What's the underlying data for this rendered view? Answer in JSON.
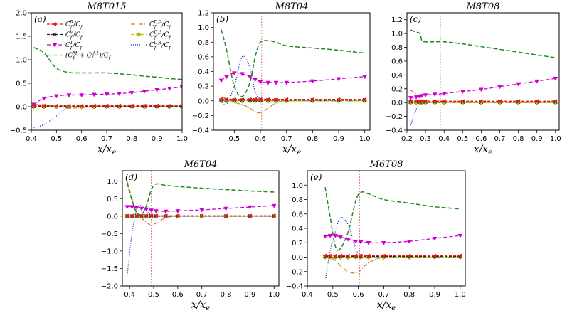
{
  "chart_data": {
    "type": "line",
    "legend": {
      "placement": "inside panel (a)",
      "entries": [
        {
          "key": "CfR",
          "label": "C_f^R / C_f",
          "color": "#e41a1c",
          "dash": "4,2",
          "marker": "arrow-left"
        },
        {
          "key": "CfV",
          "label": "C_f^V / C_f",
          "color": "#222222",
          "dash": "4,2",
          "marker": "x"
        },
        {
          "key": "CfT",
          "label": "C_f^T / C_f",
          "color": "#cc00cc",
          "dash": "5,3",
          "marker": "tri-down"
        },
        {
          "key": "CfM",
          "label": "(C_f^M + C_f^{D,1}) / C_f",
          "color": "#1a8a1a",
          "dash": "6,3",
          "marker": "none"
        },
        {
          "key": "CfD2",
          "label": "C_f^{D,2} / C_f",
          "color": "#d2832a",
          "dash": "6,2,1,2",
          "marker": "none"
        },
        {
          "key": "CfD3",
          "label": "C_f^{D,3} / C_f",
          "color": "#c8c800",
          "dash": "5,2",
          "marker": "diamond"
        },
        {
          "key": "CfD4",
          "label": "C_f^{D,4} / C_f",
          "color": "#2222cc",
          "dash": "1,2",
          "marker": "none"
        }
      ]
    },
    "panels": [
      {
        "label": "(a)",
        "title": "M8T015",
        "xlabel": "x/x_e",
        "xlim": [
          0.4,
          1.0
        ],
        "ylim": [
          -0.5,
          2.0
        ],
        "xticks": [
          "0.4",
          "0.5",
          "0.6",
          "0.7",
          "0.8",
          "0.9",
          "1.0"
        ],
        "yticks": [
          "−0.5",
          "0.0",
          "0.5",
          "1.0",
          "1.5",
          "2.0"
        ],
        "vline": 0.605,
        "x": [
          0.41,
          0.45,
          0.5,
          0.55,
          0.6,
          0.65,
          0.7,
          0.75,
          0.8,
          0.85,
          0.9,
          0.95,
          1.0
        ],
        "series": {
          "CfM": [
            1.26,
            1.15,
            0.82,
            0.73,
            0.72,
            0.72,
            0.72,
            0.7,
            0.68,
            0.65,
            0.63,
            0.6,
            0.58
          ],
          "CfT": [
            0.05,
            0.18,
            0.23,
            0.25,
            0.25,
            0.26,
            0.27,
            0.28,
            0.3,
            0.33,
            0.36,
            0.39,
            0.42
          ],
          "CfD4": [
            -0.45,
            -0.38,
            -0.2,
            0.0,
            0.03,
            0.01,
            0.0,
            0.0,
            0.0,
            0.0,
            0.0,
            0.0,
            0.0
          ],
          "CfR": [
            0.02,
            0.02,
            0.02,
            0.02,
            0.02,
            0.02,
            0.02,
            0.02,
            0.02,
            0.02,
            0.02,
            0.02,
            0.02
          ],
          "CfV": [
            0.01,
            0.01,
            0.01,
            0.01,
            0.01,
            0.01,
            0.01,
            0.01,
            0.01,
            0.01,
            0.01,
            0.01,
            0.01
          ],
          "CfD2": [
            0.05,
            0.04,
            0.0,
            -0.03,
            -0.02,
            0.0,
            0.0,
            0.0,
            0.0,
            0.0,
            0.0,
            0.0,
            0.0
          ],
          "CfD3": [
            0.0,
            0.0,
            0.0,
            0.0,
            0.0,
            0.0,
            0.0,
            0.0,
            0.0,
            0.0,
            0.0,
            0.0,
            0.0
          ]
        }
      },
      {
        "label": "(b)",
        "title": "M8T04",
        "xlabel": "x/x_e",
        "xlim": [
          0.42,
          1.02
        ],
        "ylim": [
          -0.4,
          1.2
        ],
        "xticks": [
          "0.5",
          "0.6",
          "0.7",
          "0.8",
          "0.9",
          "1.0"
        ],
        "yticks": [
          "−0.4",
          "−0.2",
          "0.0",
          "0.2",
          "0.4",
          "0.6",
          "0.8",
          "1.0",
          "1.2"
        ],
        "vline": 0.605,
        "x": [
          0.45,
          0.47,
          0.5,
          0.53,
          0.56,
          0.58,
          0.6,
          0.63,
          0.66,
          0.7,
          0.8,
          0.9,
          1.0
        ],
        "series": {
          "CfM": [
            0.97,
            0.7,
            0.2,
            0.06,
            0.25,
            0.6,
            0.8,
            0.82,
            0.8,
            0.75,
            0.72,
            0.69,
            0.65
          ],
          "CfT": [
            0.28,
            0.33,
            0.38,
            0.37,
            0.33,
            0.29,
            0.26,
            0.25,
            0.25,
            0.25,
            0.27,
            0.3,
            0.33
          ],
          "CfD4": [
            0.0,
            -0.05,
            0.2,
            0.6,
            0.45,
            0.12,
            0.03,
            0.0,
            0.0,
            0.0,
            0.0,
            0.0,
            0.0
          ],
          "CfD2": [
            0.05,
            0.03,
            -0.02,
            -0.05,
            -0.1,
            -0.15,
            -0.16,
            -0.1,
            -0.03,
            0.0,
            0.0,
            0.0,
            0.0
          ],
          "CfR": [
            0.02,
            0.02,
            0.02,
            0.02,
            0.02,
            0.02,
            0.02,
            0.02,
            0.02,
            0.02,
            0.02,
            0.02,
            0.02
          ],
          "CfV": [
            0.01,
            0.01,
            0.01,
            0.01,
            0.01,
            0.01,
            0.01,
            0.01,
            0.01,
            0.01,
            0.01,
            0.01,
            0.01
          ],
          "CfD3": [
            0.0,
            0.0,
            0.0,
            0.0,
            0.0,
            0.0,
            0.0,
            0.0,
            0.0,
            0.0,
            0.0,
            0.0,
            0.0
          ]
        }
      },
      {
        "label": "(c)",
        "title": "M8T08",
        "xlabel": "x/x_e",
        "xlim": [
          0.2,
          1.02
        ],
        "ylim": [
          -0.4,
          1.3
        ],
        "xticks": [
          "0.2",
          "0.3",
          "0.4",
          "0.5",
          "0.6",
          "0.7",
          "0.8",
          "0.9",
          "1.0"
        ],
        "yticks": [
          "−0.4",
          "−0.2",
          "0.0",
          "0.2",
          "0.4",
          "0.6",
          "0.8",
          "1.0",
          "1.2"
        ],
        "vline": 0.38,
        "x": [
          0.22,
          0.25,
          0.27,
          0.28,
          0.3,
          0.35,
          0.4,
          0.5,
          0.6,
          0.7,
          0.8,
          0.9,
          1.0
        ],
        "series": {
          "CfM": [
            1.05,
            1.02,
            1.0,
            0.9,
            0.88,
            0.88,
            0.88,
            0.85,
            0.81,
            0.77,
            0.73,
            0.69,
            0.65
          ],
          "CfT": [
            0.07,
            0.08,
            0.09,
            0.1,
            0.11,
            0.12,
            0.13,
            0.16,
            0.19,
            0.23,
            0.27,
            0.31,
            0.35
          ],
          "CfD4": [
            -0.33,
            -0.1,
            0.0,
            0.02,
            0.01,
            0.0,
            0.0,
            0.0,
            0.0,
            0.0,
            0.0,
            0.0,
            0.0
          ],
          "CfD2": [
            0.18,
            0.12,
            0.05,
            0.02,
            0.0,
            0.0,
            0.0,
            0.0,
            0.0,
            0.0,
            0.0,
            0.0,
            0.0
          ],
          "CfR": [
            0.02,
            0.02,
            0.02,
            0.02,
            0.02,
            0.02,
            0.02,
            0.02,
            0.02,
            0.02,
            0.02,
            0.02,
            0.02
          ],
          "CfV": [
            0.01,
            0.01,
            0.01,
            0.01,
            0.01,
            0.01,
            0.01,
            0.01,
            0.01,
            0.01,
            0.01,
            0.01,
            0.01
          ],
          "CfD3": [
            0.0,
            0.0,
            0.0,
            0.0,
            0.0,
            0.0,
            0.0,
            0.0,
            0.0,
            0.0,
            0.0,
            0.0,
            0.0
          ]
        }
      },
      {
        "label": "(d)",
        "title": "M6T04",
        "xlabel": "x/x_e",
        "xlim": [
          0.37,
          1.02
        ],
        "ylim": [
          -2.0,
          1.3
        ],
        "xticks": [
          "0.4",
          "0.5",
          "0.6",
          "0.7",
          "0.8",
          "0.9",
          "1.0"
        ],
        "yticks": [
          "−2.0",
          "−1.5",
          "−1.0",
          "−0.5",
          "0.0",
          "0.5",
          "1.0"
        ],
        "vline": 0.49,
        "x": [
          0.39,
          0.41,
          0.43,
          0.45,
          0.47,
          0.49,
          0.51,
          0.55,
          0.6,
          0.7,
          0.8,
          0.9,
          1.0
        ],
        "series": {
          "CfM": [
            0.95,
            0.45,
            0.1,
            0.05,
            0.3,
            0.75,
            0.92,
            0.88,
            0.85,
            0.8,
            0.76,
            0.72,
            0.69
          ],
          "CfT": [
            0.27,
            0.27,
            0.25,
            0.22,
            0.2,
            0.17,
            0.15,
            0.14,
            0.15,
            0.18,
            0.22,
            0.26,
            0.3
          ],
          "CfD4": [
            -1.7,
            -0.5,
            0.2,
            0.3,
            0.15,
            0.03,
            0.0,
            0.0,
            0.0,
            0.0,
            0.0,
            0.0,
            0.0
          ],
          "CfD2": [
            1.0,
            0.5,
            0.1,
            -0.05,
            -0.18,
            -0.25,
            -0.2,
            -0.05,
            0.0,
            0.0,
            0.0,
            0.0,
            0.0
          ],
          "CfR": [
            0.01,
            0.01,
            0.01,
            0.01,
            0.01,
            0.01,
            0.01,
            0.01,
            0.01,
            0.01,
            0.01,
            0.01,
            0.01
          ],
          "CfV": [
            0.0,
            0.0,
            0.0,
            0.0,
            0.0,
            0.0,
            0.0,
            0.0,
            0.0,
            0.0,
            0.0,
            0.0,
            0.0
          ],
          "CfD3": [
            0.0,
            0.0,
            0.0,
            0.0,
            0.0,
            0.0,
            0.0,
            0.0,
            0.0,
            0.0,
            0.0,
            0.0,
            0.0
          ]
        }
      },
      {
        "label": "(e)",
        "title": "M6T08",
        "xlabel": "x/x_e",
        "xlim": [
          0.4,
          1.02
        ],
        "ylim": [
          -0.4,
          1.2
        ],
        "xticks": [
          "0.4",
          "0.5",
          "0.6",
          "0.7",
          "0.8",
          "0.9",
          "1.0"
        ],
        "yticks": [
          "−0.4",
          "−0.2",
          "0.0",
          "0.2",
          "0.4",
          "0.6",
          "0.8",
          "1.0"
        ],
        "vline": 0.605,
        "x": [
          0.47,
          0.49,
          0.51,
          0.53,
          0.56,
          0.59,
          0.61,
          0.64,
          0.7,
          0.8,
          0.9,
          1.0
        ],
        "series": {
          "CfM": [
            0.97,
            0.55,
            0.15,
            0.12,
            0.35,
            0.78,
            0.9,
            0.88,
            0.8,
            0.75,
            0.7,
            0.67
          ],
          "CfT": [
            0.29,
            0.3,
            0.3,
            0.28,
            0.25,
            0.22,
            0.21,
            0.2,
            0.2,
            0.22,
            0.26,
            0.3
          ],
          "CfD4": [
            -0.35,
            0.1,
            0.35,
            0.55,
            0.45,
            0.12,
            0.03,
            0.0,
            0.0,
            0.0,
            0.0,
            0.0
          ],
          "CfD2": [
            0.04,
            0.0,
            -0.05,
            -0.12,
            -0.2,
            -0.22,
            -0.18,
            -0.08,
            0.0,
            0.0,
            0.0,
            0.0
          ],
          "CfR": [
            0.02,
            0.02,
            0.02,
            0.02,
            0.02,
            0.02,
            0.02,
            0.02,
            0.02,
            0.02,
            0.02,
            0.02
          ],
          "CfV": [
            0.01,
            0.01,
            0.01,
            0.01,
            0.01,
            0.01,
            0.01,
            0.01,
            0.01,
            0.01,
            0.01,
            0.01
          ],
          "CfD3": [
            0.0,
            0.0,
            0.0,
            0.0,
            0.0,
            0.0,
            0.0,
            0.0,
            0.0,
            0.0,
            0.0,
            0.0
          ]
        }
      }
    ]
  },
  "colors": {
    "vline": "#e06060",
    "axis": "#000000"
  }
}
